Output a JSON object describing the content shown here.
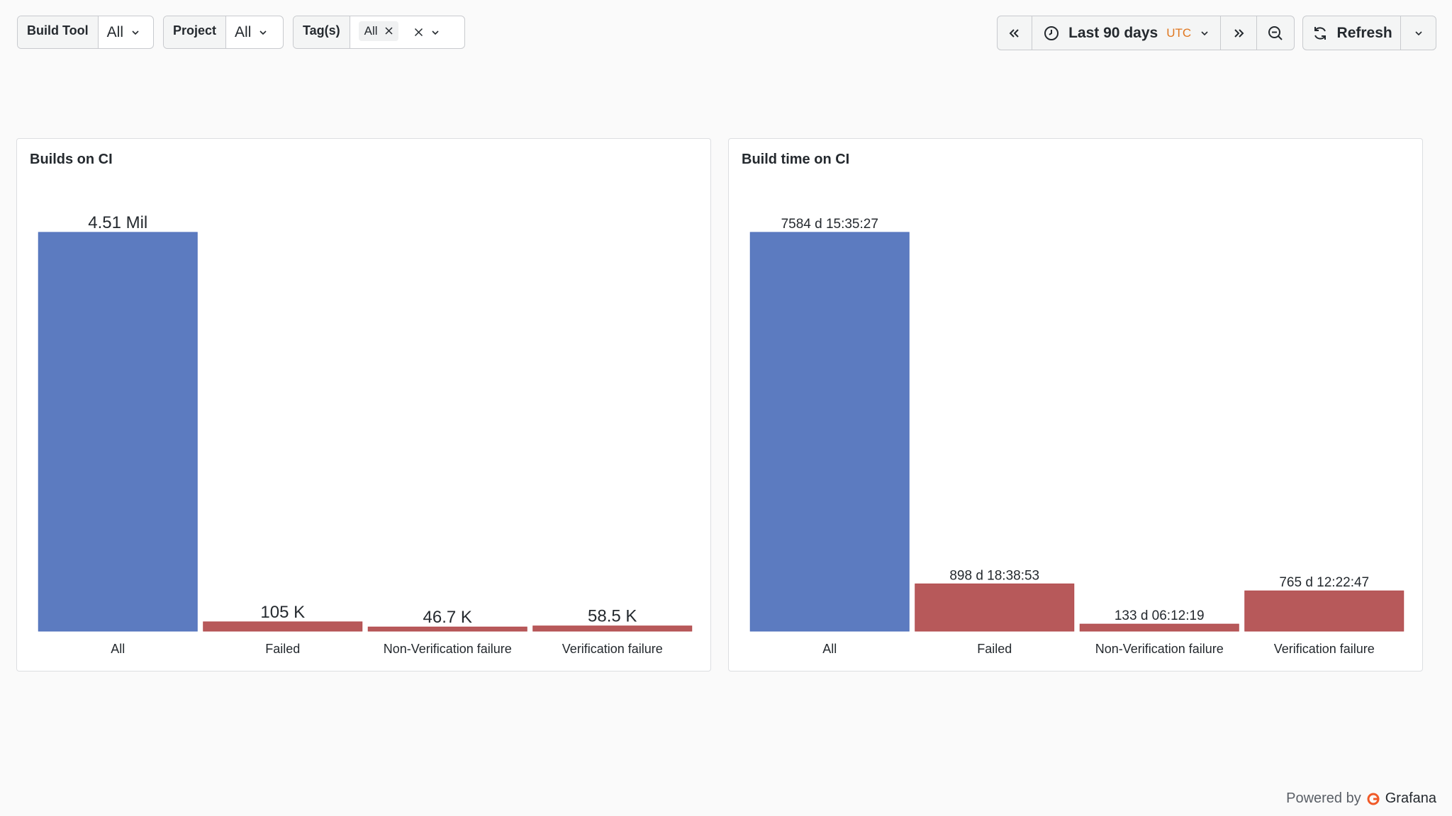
{
  "filters": {
    "build_tool": {
      "label": "Build Tool",
      "value": "All"
    },
    "project": {
      "label": "Project",
      "value": "All"
    },
    "tags": {
      "label": "Tag(s)",
      "value": "All"
    }
  },
  "time_picker": {
    "range": "Last 90 days",
    "timezone": "UTC"
  },
  "refresh": {
    "label": "Refresh"
  },
  "footer": {
    "powered_by": "Powered by",
    "brand": "Grafana"
  },
  "colors": {
    "blue": "#5071bb",
    "red": "#b24c4e"
  },
  "chart_data": [
    {
      "type": "bar",
      "title": "Builds on CI",
      "categories": [
        "All",
        "Failed",
        "Non-Verification failure",
        "Verification failure"
      ],
      "values": [
        4510000,
        105000,
        46700,
        58500
      ],
      "value_labels": [
        "4.51 Mil",
        "105 K",
        "46.7 K",
        "58.5 K"
      ],
      "colors": [
        "#5071bb",
        "#b24c4e",
        "#b24c4e",
        "#b24c4e"
      ],
      "ylim": [
        0,
        4510000
      ]
    },
    {
      "type": "bar",
      "title": "Build time on CI",
      "categories": [
        "All",
        "Failed",
        "Non-Verification failure",
        "Verification failure"
      ],
      "values": [
        7584.65,
        898.78,
        133.26,
        765.52
      ],
      "value_labels": [
        "7584 d 15:35:27",
        "898 d 18:38:53",
        "133 d 06:12:19",
        "765 d 12:22:47"
      ],
      "colors": [
        "#5071bb",
        "#b24c4e",
        "#b24c4e",
        "#b24c4e"
      ],
      "ylim": [
        0,
        7584.65
      ]
    }
  ]
}
